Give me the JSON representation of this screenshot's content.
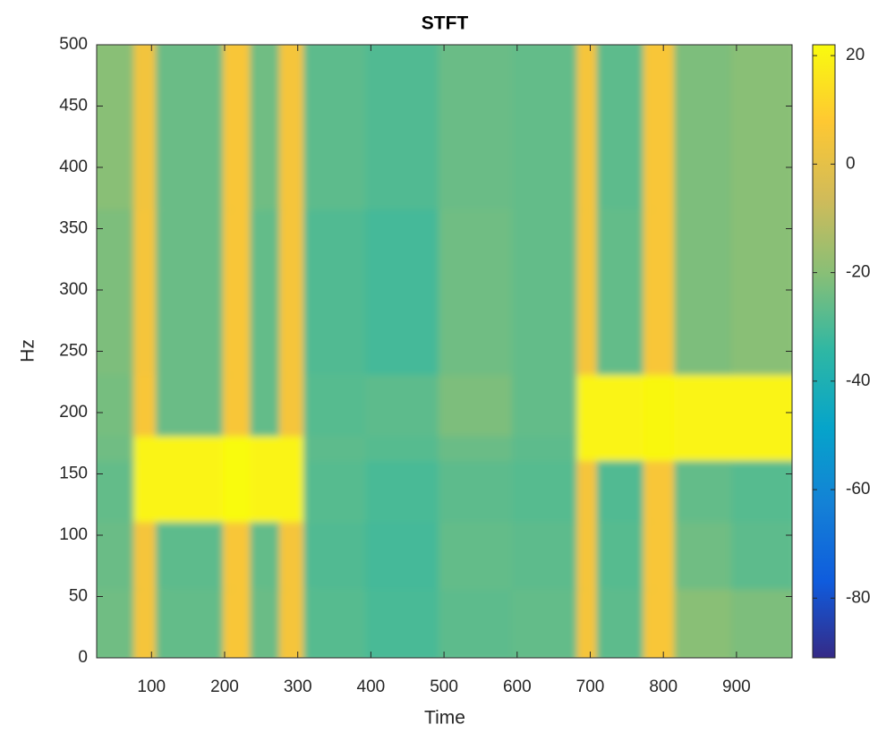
{
  "chart_data": {
    "type": "heatmap",
    "title": "STFT",
    "x_label": "Time",
    "y_label": "Hz",
    "x_edges": [
      25,
      83,
      113,
      205,
      242,
      282,
      315,
      400,
      500,
      600,
      689,
      716,
      780,
      822,
      900,
      976
    ],
    "y_edges": [
      0,
      60,
      115,
      165,
      185,
      235,
      370,
      500
    ],
    "values": [
      [
        -24,
        5,
        -26,
        6,
        -25,
        5,
        -28,
        -30,
        -27,
        -26,
        5,
        -27,
        6,
        -20,
        -22
      ],
      [
        -25,
        5,
        -27,
        6,
        -26,
        5,
        -29,
        -31,
        -26,
        -27,
        5,
        -28,
        6,
        -24,
        -27
      ],
      [
        -26,
        20,
        20,
        22,
        20,
        20,
        -28,
        -30,
        -27,
        -28,
        5,
        -29,
        6,
        -26,
        -28
      ],
      [
        -24,
        20,
        20,
        22,
        20,
        20,
        -27,
        -28,
        -25,
        -27,
        20,
        20,
        21,
        20,
        20
      ],
      [
        -23,
        6,
        -25,
        6,
        -26,
        5,
        -28,
        -27,
        -22,
        -26,
        20,
        20,
        21,
        20,
        20
      ],
      [
        -22,
        5,
        -25,
        6,
        -26,
        5,
        -29,
        -31,
        -24,
        -26,
        5,
        -26,
        6,
        -22,
        -20
      ],
      [
        -20,
        4,
        -25,
        6,
        -24,
        5,
        -27,
        -29,
        -25,
        -26,
        5,
        -27,
        6,
        -22,
        -20
      ]
    ],
    "xlim": [
      25,
      976
    ],
    "xticks": [
      100,
      200,
      300,
      400,
      500,
      600,
      700,
      800,
      900
    ],
    "ylim": [
      0,
      500
    ],
    "yticks": [
      0,
      50,
      100,
      150,
      200,
      250,
      300,
      350,
      400,
      450,
      500
    ],
    "clim": [
      -91,
      22
    ],
    "cticks": [
      -80,
      -60,
      -40,
      -20,
      0,
      20
    ],
    "colormap": [
      "#352a87",
      "#0f5cdd",
      "#1481d6",
      "#06a4ca",
      "#2eb7a4",
      "#87bf77",
      "#d1bb59",
      "#fec832",
      "#f9fb0e"
    ]
  }
}
